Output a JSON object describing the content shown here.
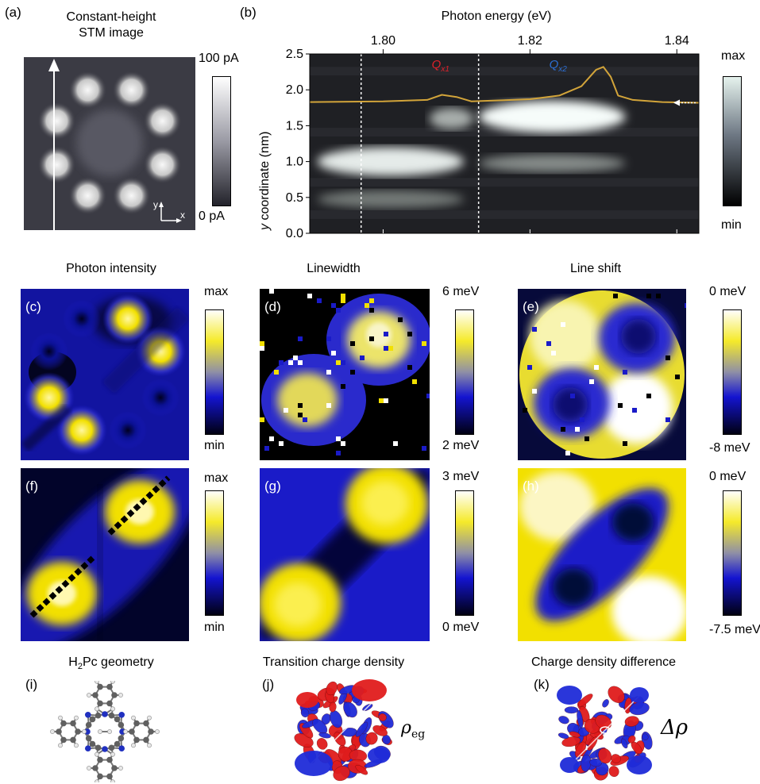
{
  "colors": {
    "stm_bg": "#3b3b44",
    "spec_bg": "#1f2024",
    "trace": "#d2a43a",
    "yellow": "#f2e000",
    "blue": "#1a1bc8",
    "navy": "#050a40",
    "qx1": "#e0212a",
    "qx2": "#2c6fd4"
  },
  "panel_a": {
    "label": "(a)",
    "title_line1": "Constant-height",
    "title_line2": "STM image",
    "cbar_max": "100 pA",
    "cbar_min": "0 pA",
    "axis_y": "y",
    "axis_x": "x"
  },
  "panel_b": {
    "label": "(b)",
    "xlabel": "Photon energy (eV)",
    "ylabel_italic": "y",
    "ylabel_rest": " coordinate (nm)",
    "peak1_main": "Q",
    "peak1_sub": "x1",
    "peak2_main": "Q",
    "peak2_sub": "x2",
    "cbar_max": "max",
    "cbar_min": "min"
  },
  "chart_data": {
    "type": "heatmap",
    "xlabel": "Photon energy (eV)",
    "ylabel": "y coordinate (nm)",
    "xlim": [
      1.79,
      1.843
    ],
    "ylim": [
      0.0,
      2.5
    ],
    "x_ticks": [
      "1.80",
      "1.82",
      "1.84"
    ],
    "x_tick_values": [
      1.8,
      1.82,
      1.84
    ],
    "y_ticks": [
      "0.0",
      "0.5",
      "1.0",
      "1.5",
      "2.0",
      "2.5"
    ],
    "y_tick_values": [
      0.0,
      0.5,
      1.0,
      1.5,
      2.0,
      2.5
    ],
    "dashed_lines_x": [
      1.797,
      1.813
    ],
    "bright_regions": [
      {
        "x_from": 1.79,
        "x_to": 1.81,
        "y_from": 0.8,
        "y_to": 1.2,
        "intensity": 0.85
      },
      {
        "x_from": 1.806,
        "x_to": 1.812,
        "y_from": 1.45,
        "y_to": 1.75,
        "intensity": 0.5
      },
      {
        "x_from": 1.812,
        "x_to": 1.832,
        "y_from": 1.4,
        "y_to": 1.85,
        "intensity": 0.95
      },
      {
        "x_from": 1.812,
        "x_to": 1.832,
        "y_from": 0.85,
        "y_to": 1.1,
        "intensity": 0.3
      },
      {
        "x_from": 1.79,
        "x_to": 1.81,
        "y_from": 0.35,
        "y_to": 0.6,
        "intensity": 0.2
      }
    ],
    "profile_trace": {
      "x": [
        1.79,
        1.8,
        1.806,
        1.808,
        1.81,
        1.812,
        1.815,
        1.82,
        1.824,
        1.827,
        1.829,
        1.83,
        1.831,
        1.832,
        1.834,
        1.838,
        1.843
      ],
      "y": [
        1.83,
        1.84,
        1.86,
        1.93,
        1.9,
        1.84,
        1.85,
        1.87,
        1.92,
        2.05,
        2.28,
        2.32,
        2.18,
        1.92,
        1.86,
        1.83,
        1.82
      ]
    },
    "annotations": [
      {
        "text": "Qx1",
        "x": 1.809,
        "y": 2.3
      },
      {
        "text": "Qx2",
        "x": 1.825,
        "y": 2.3
      }
    ]
  },
  "panel_c": {
    "label": "(c)",
    "title": "Photon intensity",
    "cbar_max": "max",
    "cbar_min": "min"
  },
  "panel_d": {
    "label": "(d)",
    "title": "Linewidth",
    "cbar_max": "6 meV",
    "cbar_min": "2 meV"
  },
  "panel_e": {
    "label": "(e)",
    "title": "Line shift",
    "cbar_max": "0 meV",
    "cbar_min": "-8 meV"
  },
  "panel_f": {
    "label": "(f)",
    "cbar_max": "max",
    "cbar_min": "min"
  },
  "panel_g": {
    "label": "(g)",
    "cbar_max": "3 meV",
    "cbar_min": "0 meV"
  },
  "panel_h": {
    "label": "(h)",
    "cbar_max": "0 meV",
    "cbar_min": "-7.5 meV"
  },
  "panel_i": {
    "label": "(i)",
    "title_pre": "H",
    "title_sub": "2",
    "title_post": "Pc geometry"
  },
  "panel_j": {
    "label": "(j)",
    "title": "Transition charge density",
    "symbol_main": "ρ",
    "symbol_sub": "eg"
  },
  "panel_k": {
    "label": "(k)",
    "title": "Charge density difference",
    "symbol": "Δρ"
  }
}
